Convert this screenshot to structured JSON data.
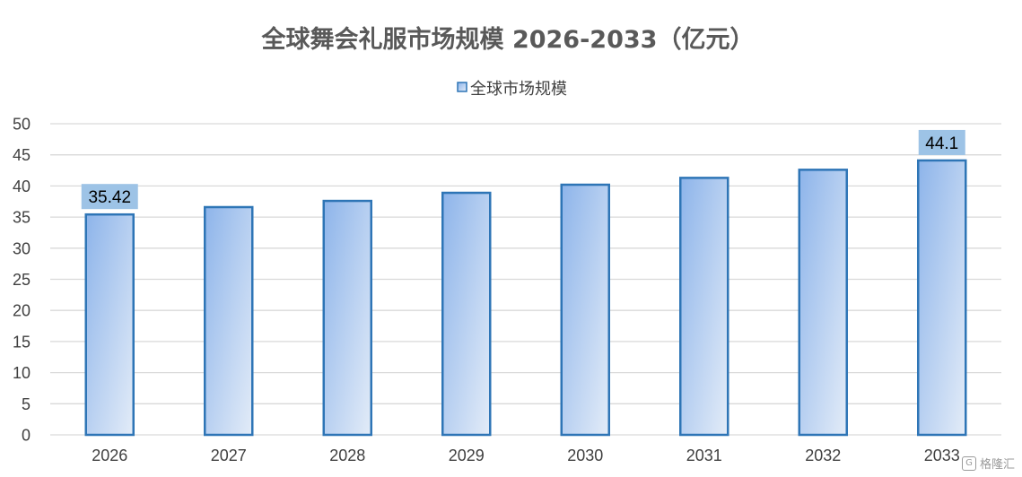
{
  "chart_data": {
    "type": "bar",
    "title": "全球舞会礼服市场规模 2026-2033（亿元）",
    "legend": "全球市场规模",
    "legend_position": "top",
    "categories": [
      "2026",
      "2027",
      "2028",
      "2029",
      "2030",
      "2031",
      "2032",
      "2033"
    ],
    "series": [
      {
        "name": "全球市场规模",
        "values": [
          35.42,
          36.6,
          37.6,
          38.9,
          40.2,
          41.3,
          42.6,
          44.1
        ]
      }
    ],
    "data_labels": [
      {
        "category": "2026",
        "text": "35.42"
      },
      {
        "category": "2033",
        "text": "44.1"
      }
    ],
    "ylim": [
      0,
      50
    ],
    "yticks": [
      0,
      5,
      10,
      15,
      20,
      25,
      30,
      35,
      40,
      45,
      50
    ],
    "grid": true,
    "colors": {
      "bar_top": "#8db4ea",
      "bar_bottom": "#dce8f7",
      "bar_border": "#2e75b6",
      "label_bg": "#9dc3e6",
      "grid": "#d9d9d9",
      "title": "#595959"
    }
  },
  "watermark": {
    "icon": "gelonghui-logo-icon",
    "text": "格隆汇"
  }
}
